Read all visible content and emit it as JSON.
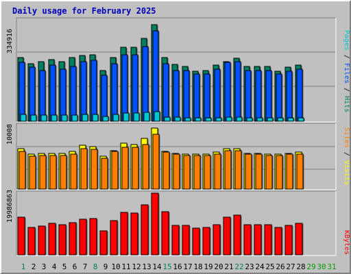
{
  "chart_data": {
    "type": "bar",
    "title": "Daily usage for February 2025",
    "days": [
      "1",
      "2",
      "3",
      "4",
      "5",
      "6",
      "7",
      "8",
      "9",
      "10",
      "11",
      "12",
      "13",
      "14",
      "15",
      "16",
      "17",
      "18",
      "19",
      "20",
      "21",
      "22",
      "23",
      "24",
      "25",
      "26",
      "27",
      "28",
      "29",
      "30",
      "31"
    ],
    "weekend_days": [
      "1",
      "8",
      "15",
      "22",
      "29"
    ],
    "future_days": [
      "29",
      "30",
      "31"
    ],
    "panels": [
      {
        "name": "traffic",
        "ymax_label": "334916",
        "ymax": 334916,
        "legend": [
          {
            "text": "Pages",
            "color": "#00c8d2"
          },
          {
            "text": " / ",
            "color": "#000000"
          },
          {
            "text": "Files",
            "color": "#0050ff"
          },
          {
            "text": " / ",
            "color": "#000000"
          },
          {
            "text": "Hits",
            "color": "#008060"
          }
        ],
        "series": [
          {
            "name": "Hits",
            "color": "#008060",
            "values": [
              210800,
              191200,
              197700,
              204200,
              197700,
              210800,
              217400,
              220600,
              168300,
              210800,
              243600,
              243600,
              272900,
              318300,
              210800,
              188000,
              181500,
              165100,
              168300,
              184700,
              197700,
              207500,
              181500,
              181500,
              181500,
              165100,
              178200,
              184700
            ]
          },
          {
            "name": "Files",
            "color": "#0050ff",
            "values": [
              194400,
              178200,
              168300,
              184700,
              171600,
              181500,
              197700,
              201000,
              152000,
              191200,
              220600,
              220600,
              246900,
              298700,
              191200,
              168300,
              168300,
              155200,
              155200,
              171600,
              194400,
              197700,
              168300,
              168300,
              168300,
              155200,
              165100,
              171600
            ]
          },
          {
            "name": "Pages",
            "color": "#00c8d2",
            "values": [
              22800,
              19600,
              19600,
              19600,
              19600,
              19600,
              22800,
              22800,
              16300,
              22800,
              26100,
              26100,
              29400,
              32600,
              13100,
              13100,
              11400,
              11400,
              11400,
              11400,
              13100,
              13100,
              11400,
              11400,
              11400,
              11400,
              11400,
              11400
            ]
          }
        ]
      },
      {
        "name": "visitors",
        "ymax_label": "10008",
        "ymax": 10008,
        "legend": [
          {
            "text": "Sites",
            "color": "#ff8000"
          },
          {
            "text": " / ",
            "color": "#000000"
          },
          {
            "text": "Visits",
            "color": "#ffff00"
          }
        ],
        "series": [
          {
            "name": "Visits",
            "color": "#ffff00",
            "values": [
              6400,
              5440,
              5600,
              5600,
              5600,
              5920,
              6880,
              6720,
              5120,
              6080,
              7200,
              7040,
              8000,
              9600,
              5920,
              5600,
              5440,
              5440,
              5440,
              5760,
              6400,
              6400,
              5600,
              5600,
              5440,
              5440,
              5600,
              5760
            ]
          },
          {
            "name": "Sites",
            "color": "#ff8000",
            "values": [
              5920,
              5120,
              5280,
              5280,
              5280,
              5440,
              6400,
              6240,
              4800,
              5920,
              6560,
              6560,
              7040,
              8640,
              5760,
              5440,
              5280,
              5280,
              5280,
              5440,
              6080,
              6080,
              5440,
              5440,
              5280,
              5280,
              5440,
              5440
            ]
          }
        ]
      },
      {
        "name": "kbytes",
        "ymax_label": "19986863",
        "ymax": 19986863,
        "legend": [
          {
            "text": "KBytes",
            "color": "#ff0000"
          }
        ],
        "series": [
          {
            "name": "KBytes",
            "color": "#ff0000",
            "values": [
              12130000,
              8950000,
              9320000,
              10240000,
              9680000,
              10420000,
              11520000,
              11700000,
              7840000,
              11150000,
              13730000,
              13550000,
              16300000,
              19980000,
              14090000,
              9500000,
              9500000,
              8760000,
              8950000,
              9680000,
              12130000,
              12860000,
              9680000,
              9680000,
              9680000,
              8950000,
              9500000,
              10240000
            ]
          }
        ]
      }
    ],
    "grid": true
  }
}
